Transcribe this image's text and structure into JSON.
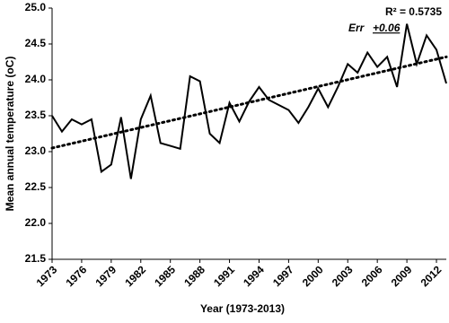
{
  "chart_data": {
    "type": "line",
    "x_label": "Year (1973-2013)",
    "y_label": "Mean annual temperature (oC)",
    "x": [
      1973,
      1974,
      1975,
      1976,
      1977,
      1978,
      1979,
      1980,
      1981,
      1982,
      1983,
      1984,
      1985,
      1986,
      1987,
      1988,
      1989,
      1990,
      1991,
      1992,
      1993,
      1994,
      1995,
      1996,
      1997,
      1998,
      1999,
      2000,
      2001,
      2002,
      2003,
      2004,
      2005,
      2006,
      2007,
      2008,
      2009,
      2010,
      2011,
      2012,
      2013
    ],
    "values": [
      23.5,
      23.28,
      23.45,
      23.38,
      23.45,
      22.72,
      22.82,
      23.48,
      22.62,
      23.45,
      23.78,
      23.12,
      23.08,
      23.04,
      24.05,
      23.98,
      23.25,
      23.12,
      23.68,
      23.42,
      23.7,
      23.9,
      23.72,
      23.65,
      23.58,
      23.4,
      23.62,
      23.88,
      23.62,
      23.9,
      24.22,
      24.1,
      24.38,
      24.18,
      24.32,
      23.9,
      24.78,
      24.22,
      24.62,
      24.42,
      23.95
    ],
    "color": "#000000",
    "trendline": {
      "x": [
        1973,
        2013
      ],
      "values": [
        23.05,
        24.32
      ],
      "color": "#000000"
    },
    "annotations": [
      "R² = 0.5735",
      "Err",
      "+0.06"
    ],
    "xlim": [
      1973,
      2013
    ],
    "xticks": [
      1973,
      1976,
      1979,
      1982,
      1985,
      1988,
      1991,
      1994,
      1997,
      2000,
      2003,
      2006,
      2009,
      2012
    ],
    "ylim": [
      21.5,
      25.0
    ],
    "yticks": [
      21.5,
      {
        "value": 22,
        "label": "22.0"
      },
      22.5,
      {
        "value": 23,
        "label": "23.0"
      },
      23.5,
      {
        "value": 24,
        "label": "24.0"
      },
      24.5,
      {
        "value": 25,
        "label": "25.0"
      }
    ]
  }
}
